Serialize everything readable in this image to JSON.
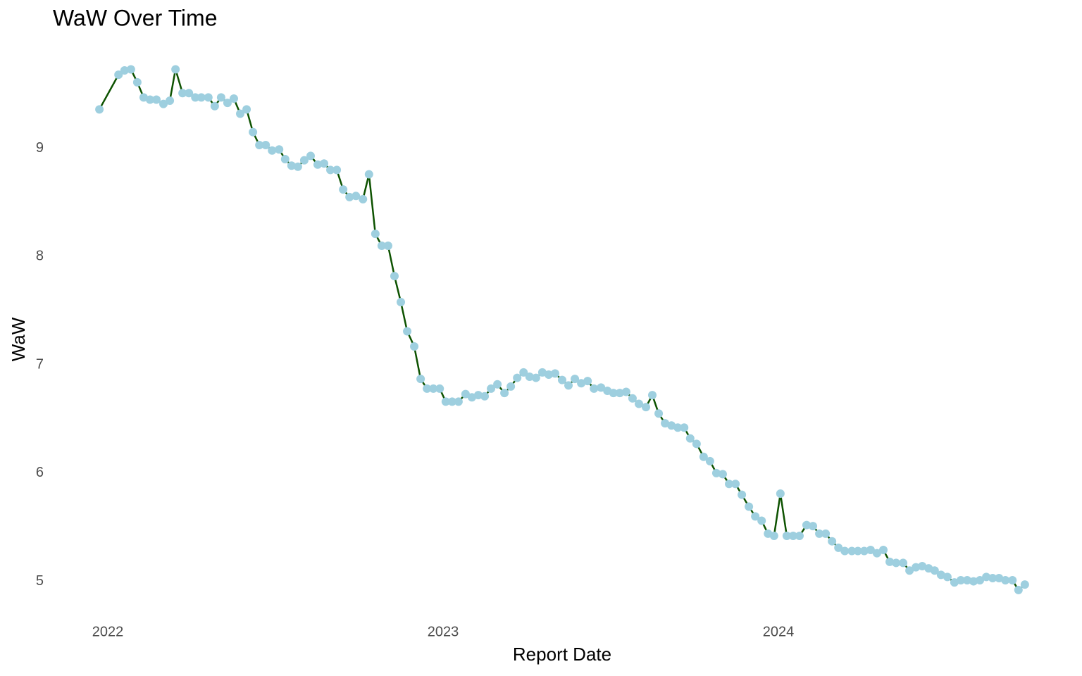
{
  "chart_data": {
    "type": "line",
    "title": "WaW Over Time",
    "x_label": "Report Date",
    "y_label": "WaW",
    "x": [
      2021.975,
      2022.032,
      2022.05,
      2022.069,
      2022.088,
      2022.107,
      2022.126,
      2022.145,
      2022.166,
      2022.185,
      2022.202,
      2022.223,
      2022.242,
      2022.261,
      2022.279,
      2022.3,
      2022.319,
      2022.338,
      2022.357,
      2022.376,
      2022.395,
      2022.414,
      2022.433,
      2022.452,
      2022.471,
      2022.49,
      2022.511,
      2022.529,
      2022.548,
      2022.567,
      2022.586,
      2022.605,
      2022.626,
      2022.645,
      2022.664,
      2022.683,
      2022.702,
      2022.721,
      2022.74,
      2022.761,
      2022.779,
      2022.798,
      2022.817,
      2022.836,
      2022.855,
      2022.874,
      2022.893,
      2022.914,
      2022.933,
      2022.952,
      2022.971,
      2022.99,
      2023.008,
      2023.027,
      2023.046,
      2023.067,
      2023.086,
      2023.105,
      2023.124,
      2023.143,
      2023.162,
      2023.183,
      2023.202,
      2023.221,
      2023.24,
      2023.258,
      2023.277,
      2023.296,
      2023.315,
      2023.334,
      2023.355,
      2023.374,
      2023.393,
      2023.412,
      2023.431,
      2023.45,
      2023.471,
      2023.49,
      2023.508,
      2023.527,
      2023.546,
      2023.565,
      2023.584,
      2023.605,
      2023.624,
      2023.643,
      2023.662,
      2023.681,
      2023.7,
      2023.719,
      2023.737,
      2023.756,
      2023.777,
      2023.796,
      2023.815,
      2023.834,
      2023.853,
      2023.872,
      2023.891,
      2023.912,
      2023.931,
      2023.95,
      2023.969,
      2023.987,
      2024.006,
      2024.025,
      2024.044,
      2024.063,
      2024.084,
      2024.103,
      2024.122,
      2024.141,
      2024.16,
      2024.179,
      2024.198,
      2024.219,
      2024.237,
      2024.256,
      2024.275,
      2024.294,
      2024.313,
      2024.332,
      2024.351,
      2024.372,
      2024.391,
      2024.41,
      2024.429,
      2024.448,
      2024.466,
      2024.485,
      2024.504,
      2024.525,
      2024.544,
      2024.563,
      2024.582,
      2024.601,
      2024.62,
      2024.639,
      2024.658,
      2024.677,
      2024.698,
      2024.716,
      2024.735
    ],
    "values": [
      9.36,
      9.68,
      9.72,
      9.73,
      9.61,
      9.47,
      9.45,
      9.45,
      9.41,
      9.44,
      9.73,
      9.51,
      9.51,
      9.47,
      9.47,
      9.47,
      9.39,
      9.47,
      9.42,
      9.46,
      9.32,
      9.36,
      9.15,
      9.03,
      9.03,
      8.98,
      8.99,
      8.9,
      8.84,
      8.83,
      8.89,
      8.93,
      8.85,
      8.86,
      8.8,
      8.8,
      8.62,
      8.55,
      8.56,
      8.53,
      8.76,
      8.21,
      8.1,
      8.1,
      7.82,
      7.58,
      7.31,
      7.17,
      6.87,
      6.78,
      6.78,
      6.78,
      6.66,
      6.66,
      6.66,
      6.73,
      6.7,
      6.72,
      6.71,
      6.78,
      6.82,
      6.74,
      6.8,
      6.88,
      6.93,
      6.89,
      6.88,
      6.93,
      6.91,
      6.92,
      6.86,
      6.81,
      6.87,
      6.83,
      6.85,
      6.78,
      6.79,
      6.76,
      6.74,
      6.74,
      6.75,
      6.69,
      6.64,
      6.61,
      6.72,
      6.55,
      6.46,
      6.44,
      6.42,
      6.42,
      6.32,
      6.27,
      6.15,
      6.11,
      6.0,
      5.99,
      5.9,
      5.9,
      5.8,
      5.69,
      5.6,
      5.56,
      5.44,
      5.42,
      5.81,
      5.42,
      5.42,
      5.42,
      5.52,
      5.51,
      5.44,
      5.44,
      5.37,
      5.31,
      5.28,
      5.28,
      5.28,
      5.28,
      5.29,
      5.26,
      5.29,
      5.18,
      5.17,
      5.17,
      5.1,
      5.13,
      5.14,
      5.12,
      5.1,
      5.06,
      5.04,
      4.99,
      5.01,
      5.01,
      5.0,
      5.01,
      5.04,
      5.03,
      5.03,
      5.01,
      5.01,
      4.92,
      4.97
    ],
    "line_color": "#0d5200",
    "point_color": "#9ecfdf",
    "xlim": [
      2021.9,
      2024.8
    ],
    "xticks": [
      2022,
      2023,
      2024
    ],
    "ylim": [
      4.75,
      9.85
    ],
    "yticks": [
      5,
      6,
      7,
      8,
      9
    ],
    "grid": false
  }
}
